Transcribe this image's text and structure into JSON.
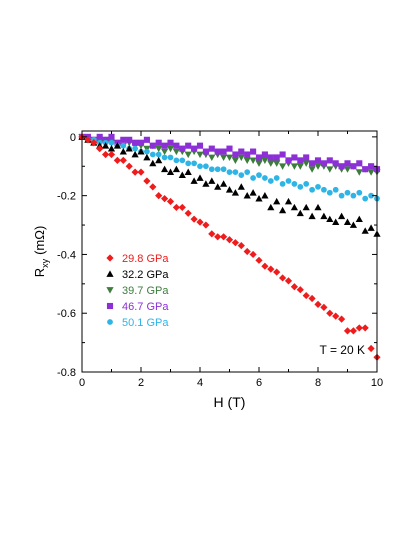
{
  "chart_data": {
    "type": "scatter",
    "title": "",
    "xlabel": "H (T)",
    "ylabel_main": "R",
    "ylabel_sub": "xy",
    "ylabel_unit": "(mΩ)",
    "xlim": [
      0,
      10
    ],
    "ylim": [
      -0.8,
      0.02
    ],
    "xticks": [
      0,
      2,
      4,
      6,
      8,
      10
    ],
    "xtick_labels": [
      "0",
      "2",
      "4",
      "6",
      "8",
      "10"
    ],
    "yticks": [
      0,
      -0.2,
      -0.4,
      -0.6,
      -0.8
    ],
    "ytick_labels": [
      "0",
      "-0.2",
      "-0.4",
      "-0.6",
      "-0.8"
    ],
    "grid": false,
    "legend_position": "left-middle",
    "annotation": "T = 20 K",
    "series": [
      {
        "name": "29.8 GPa",
        "marker": "diamond",
        "color": "#ee1c1c",
        "x": [
          0,
          0.2,
          0.4,
          0.6,
          0.8,
          1.0,
          1.2,
          1.4,
          1.6,
          1.8,
          2.0,
          2.2,
          2.4,
          2.6,
          2.8,
          3.0,
          3.2,
          3.4,
          3.6,
          3.8,
          4.0,
          4.2,
          4.4,
          4.6,
          4.8,
          5.0,
          5.2,
          5.4,
          5.6,
          5.8,
          6.0,
          6.2,
          6.4,
          6.6,
          6.8,
          7.0,
          7.2,
          7.4,
          7.6,
          7.8,
          8.0,
          8.2,
          8.4,
          8.6,
          8.8,
          9.0,
          9.2,
          9.4,
          9.6,
          9.8,
          10.0
        ],
        "y": [
          0,
          -0.01,
          -0.02,
          -0.04,
          -0.06,
          -0.06,
          -0.08,
          -0.08,
          -0.1,
          -0.12,
          -0.12,
          -0.15,
          -0.17,
          -0.2,
          -0.21,
          -0.22,
          -0.24,
          -0.24,
          -0.26,
          -0.28,
          -0.29,
          -0.3,
          -0.33,
          -0.34,
          -0.34,
          -0.35,
          -0.36,
          -0.37,
          -0.39,
          -0.4,
          -0.42,
          -0.44,
          -0.45,
          -0.46,
          -0.48,
          -0.49,
          -0.51,
          -0.52,
          -0.54,
          -0.55,
          -0.57,
          -0.58,
          -0.6,
          -0.61,
          -0.62,
          -0.66,
          -0.66,
          -0.65,
          -0.65,
          -0.72,
          -0.75
        ]
      },
      {
        "name": "32.2 GPa",
        "marker": "triangle-up",
        "color": "#000000",
        "x": [
          0,
          0.2,
          0.4,
          0.6,
          0.8,
          1.0,
          1.2,
          1.4,
          1.6,
          1.8,
          2.0,
          2.2,
          2.4,
          2.6,
          2.8,
          3.0,
          3.2,
          3.4,
          3.6,
          3.8,
          4.0,
          4.2,
          4.4,
          4.6,
          4.8,
          5.0,
          5.2,
          5.4,
          5.6,
          5.8,
          6.0,
          6.2,
          6.4,
          6.6,
          6.8,
          7.0,
          7.2,
          7.4,
          7.6,
          7.8,
          8.0,
          8.2,
          8.4,
          8.6,
          8.8,
          9.0,
          9.2,
          9.4,
          9.6,
          9.8,
          10.0
        ],
        "y": [
          0,
          -0.01,
          -0.02,
          -0.03,
          -0.03,
          -0.04,
          -0.03,
          -0.05,
          -0.04,
          -0.06,
          -0.05,
          -0.07,
          -0.09,
          -0.08,
          -0.11,
          -0.12,
          -0.11,
          -0.13,
          -0.12,
          -0.15,
          -0.14,
          -0.16,
          -0.15,
          -0.17,
          -0.16,
          -0.18,
          -0.19,
          -0.17,
          -0.2,
          -0.19,
          -0.21,
          -0.2,
          -0.24,
          -0.22,
          -0.25,
          -0.22,
          -0.24,
          -0.26,
          -0.24,
          -0.27,
          -0.24,
          -0.27,
          -0.28,
          -0.29,
          -0.27,
          -0.29,
          -0.3,
          -0.28,
          -0.32,
          -0.31,
          -0.33
        ]
      },
      {
        "name": "39.7 GPa",
        "marker": "triangle-down",
        "color": "#3c7d3c",
        "x": [
          0,
          0.2,
          0.4,
          0.6,
          0.8,
          1.0,
          1.2,
          1.4,
          1.6,
          1.8,
          2.0,
          2.2,
          2.4,
          2.6,
          2.8,
          3.0,
          3.2,
          3.4,
          3.6,
          3.8,
          4.0,
          4.2,
          4.4,
          4.6,
          4.8,
          5.0,
          5.2,
          5.4,
          5.6,
          5.8,
          6.0,
          6.2,
          6.4,
          6.6,
          6.8,
          7.0,
          7.2,
          7.4,
          7.6,
          7.8,
          8.0,
          8.2,
          8.4,
          8.6,
          8.8,
          9.0,
          9.2,
          9.4,
          9.6,
          9.8,
          10.0
        ],
        "y": [
          0,
          -0.01,
          -0.01,
          -0.02,
          -0.01,
          -0.02,
          -0.02,
          -0.03,
          -0.02,
          -0.03,
          -0.03,
          -0.04,
          -0.03,
          -0.04,
          -0.05,
          -0.04,
          -0.05,
          -0.05,
          -0.06,
          -0.05,
          -0.06,
          -0.06,
          -0.07,
          -0.06,
          -0.07,
          -0.07,
          -0.08,
          -0.07,
          -0.08,
          -0.08,
          -0.09,
          -0.08,
          -0.09,
          -0.09,
          -0.1,
          -0.09,
          -0.1,
          -0.1,
          -0.09,
          -0.11,
          -0.1,
          -0.1,
          -0.11,
          -0.1,
          -0.11,
          -0.11,
          -0.1,
          -0.12,
          -0.11,
          -0.12,
          -0.12
        ]
      },
      {
        "name": "46.7 GPa",
        "marker": "square",
        "color": "#8c2fd6",
        "x": [
          0,
          0.2,
          0.4,
          0.6,
          0.8,
          1.0,
          1.2,
          1.4,
          1.6,
          1.8,
          2.0,
          2.2,
          2.4,
          2.6,
          2.8,
          3.0,
          3.2,
          3.4,
          3.6,
          3.8,
          4.0,
          4.2,
          4.4,
          4.6,
          4.8,
          5.0,
          5.2,
          5.4,
          5.6,
          5.8,
          6.0,
          6.2,
          6.4,
          6.6,
          6.8,
          7.0,
          7.2,
          7.4,
          7.6,
          7.8,
          8.0,
          8.2,
          8.4,
          8.6,
          8.8,
          9.0,
          9.2,
          9.4,
          9.6,
          9.8,
          10.0
        ],
        "y": [
          0,
          0,
          -0.01,
          0,
          -0.01,
          0,
          -0.02,
          -0.01,
          -0.01,
          -0.02,
          -0.02,
          -0.01,
          -0.03,
          -0.02,
          -0.03,
          -0.02,
          -0.03,
          -0.04,
          -0.03,
          -0.04,
          -0.03,
          -0.05,
          -0.04,
          -0.05,
          -0.05,
          -0.04,
          -0.06,
          -0.05,
          -0.06,
          -0.05,
          -0.07,
          -0.06,
          -0.07,
          -0.07,
          -0.06,
          -0.08,
          -0.07,
          -0.08,
          -0.07,
          -0.09,
          -0.08,
          -0.09,
          -0.08,
          -0.09,
          -0.1,
          -0.09,
          -0.1,
          -0.09,
          -0.11,
          -0.1,
          -0.11
        ]
      },
      {
        "name": "50.1 GPa",
        "marker": "circle",
        "color": "#2fb4e6",
        "x": [
          0,
          0.2,
          0.4,
          0.6,
          0.8,
          1.0,
          1.2,
          1.4,
          1.6,
          1.8,
          2.0,
          2.2,
          2.4,
          2.6,
          2.8,
          3.0,
          3.2,
          3.4,
          3.6,
          3.8,
          4.0,
          4.2,
          4.4,
          4.6,
          4.8,
          5.0,
          5.2,
          5.4,
          5.6,
          5.8,
          6.0,
          6.2,
          6.4,
          6.6,
          6.8,
          7.0,
          7.2,
          7.4,
          7.6,
          7.8,
          8.0,
          8.2,
          8.4,
          8.6,
          8.8,
          9.0,
          9.2,
          9.4,
          9.6,
          9.8,
          10.0
        ],
        "y": [
          0,
          -0.01,
          -0.01,
          -0.02,
          -0.02,
          -0.02,
          -0.03,
          -0.03,
          -0.04,
          -0.04,
          -0.05,
          -0.05,
          -0.06,
          -0.06,
          -0.07,
          -0.07,
          -0.08,
          -0.08,
          -0.09,
          -0.09,
          -0.1,
          -0.1,
          -0.11,
          -0.11,
          -0.11,
          -0.12,
          -0.12,
          -0.13,
          -0.12,
          -0.14,
          -0.13,
          -0.14,
          -0.15,
          -0.14,
          -0.16,
          -0.15,
          -0.16,
          -0.17,
          -0.16,
          -0.18,
          -0.17,
          -0.18,
          -0.19,
          -0.18,
          -0.2,
          -0.19,
          -0.2,
          -0.19,
          -0.21,
          -0.2,
          -0.21
        ]
      }
    ]
  }
}
